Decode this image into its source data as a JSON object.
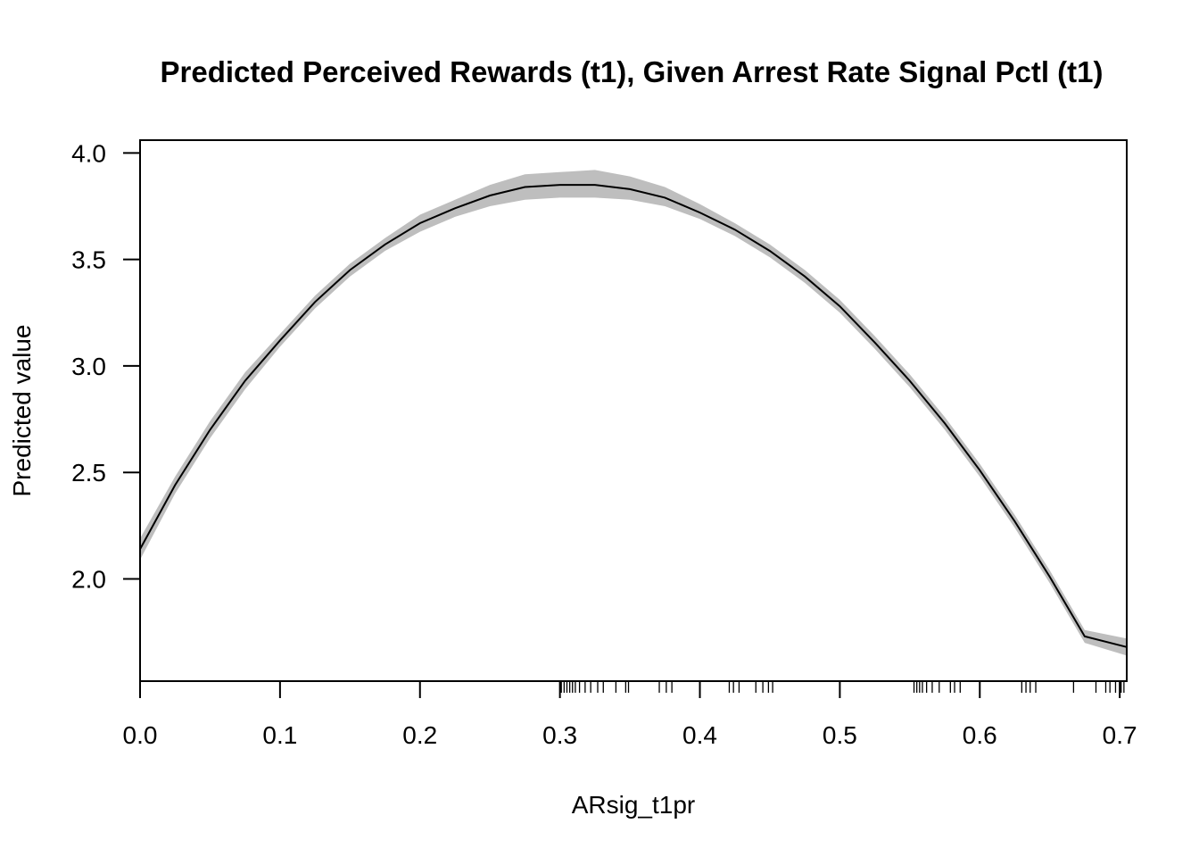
{
  "chart_data": {
    "type": "line",
    "title": "Predicted Perceived Rewards (t1), Given Arrest Rate Signal Pctl (t1)",
    "xlabel": "ARsig_t1pr",
    "ylabel": "Predicted value",
    "xlim": [
      0.0,
      0.705
    ],
    "ylim": [
      1.52,
      4.06
    ],
    "xticks": [
      0.0,
      0.1,
      0.2,
      0.3,
      0.4,
      0.5,
      0.6,
      0.7
    ],
    "xtick_labels": [
      "0.0",
      "0.1",
      "0.2",
      "0.3",
      "0.4",
      "0.5",
      "0.6",
      "0.7"
    ],
    "yticks": [
      2.0,
      2.5,
      3.0,
      3.5,
      4.0
    ],
    "ytick_labels": [
      "2.0",
      "2.5",
      "3.0",
      "3.5",
      "4.0"
    ],
    "grid": false,
    "series": [
      {
        "x": [
          0.0,
          0.025,
          0.05,
          0.075,
          0.1,
          0.125,
          0.15,
          0.175,
          0.2,
          0.225,
          0.25,
          0.275,
          0.3,
          0.325,
          0.35,
          0.375,
          0.4,
          0.425,
          0.45,
          0.475,
          0.5,
          0.525,
          0.55,
          0.575,
          0.6,
          0.625,
          0.65,
          0.675,
          0.705
        ],
        "y": [
          2.14,
          2.44,
          2.7,
          2.93,
          3.12,
          3.3,
          3.45,
          3.57,
          3.67,
          3.74,
          3.8,
          3.84,
          3.85,
          3.85,
          3.83,
          3.79,
          3.72,
          3.64,
          3.54,
          3.42,
          3.28,
          3.11,
          2.93,
          2.73,
          2.51,
          2.27,
          2.01,
          1.73,
          1.68
        ],
        "lower": [
          2.09,
          2.4,
          2.66,
          2.89,
          3.09,
          3.27,
          3.42,
          3.54,
          3.63,
          3.7,
          3.75,
          3.78,
          3.79,
          3.79,
          3.78,
          3.75,
          3.69,
          3.61,
          3.51,
          3.39,
          3.25,
          3.08,
          2.9,
          2.7,
          2.48,
          2.24,
          1.98,
          1.7,
          1.64
        ],
        "upper": [
          2.19,
          2.48,
          2.74,
          2.97,
          3.15,
          3.33,
          3.48,
          3.6,
          3.71,
          3.78,
          3.85,
          3.9,
          3.91,
          3.92,
          3.89,
          3.84,
          3.76,
          3.67,
          3.57,
          3.45,
          3.31,
          3.14,
          2.96,
          2.76,
          2.54,
          2.3,
          2.04,
          1.76,
          1.72
        ]
      }
    ],
    "rug": [
      0.301,
      0.303,
      0.305,
      0.307,
      0.309,
      0.311,
      0.314,
      0.318,
      0.322,
      0.327,
      0.331,
      0.34,
      0.347,
      0.349,
      0.371,
      0.376,
      0.38,
      0.421,
      0.424,
      0.428,
      0.44,
      0.445,
      0.449,
      0.452,
      0.553,
      0.555,
      0.557,
      0.559,
      0.562,
      0.566,
      0.571,
      0.579,
      0.582,
      0.586,
      0.63,
      0.633,
      0.636,
      0.64,
      0.667,
      0.683,
      0.69,
      0.693,
      0.697,
      0.701,
      0.703
    ]
  }
}
